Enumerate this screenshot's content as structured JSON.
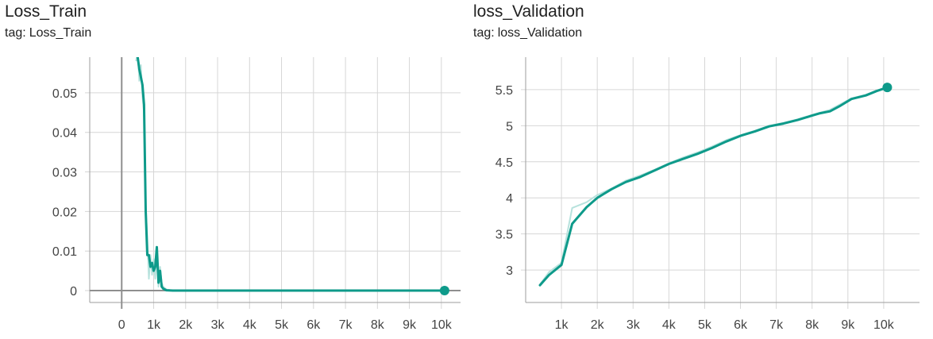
{
  "tag_prefix": "tag:",
  "colors": {
    "series": "#0e9a8a",
    "series_raw": "#b7e2dd",
    "grid": "#d6d6d6",
    "axis": "#9e9e9e",
    "zero_axis": "#8f8f8f",
    "text": "#212121"
  },
  "chart_data": [
    {
      "type": "line",
      "title": "Loss_Train",
      "tag": "Loss_Train",
      "xlabel": "",
      "ylabel": "",
      "xlim": [
        -1000,
        10600
      ],
      "ylim": [
        -0.003,
        0.059
      ],
      "xticks": [
        0,
        1000,
        2000,
        3000,
        4000,
        5000,
        6000,
        7000,
        8000,
        9000,
        10000
      ],
      "xtick_labels": [
        "0",
        "1k",
        "2k",
        "3k",
        "4k",
        "5k",
        "6k",
        "7k",
        "8k",
        "9k",
        "10k"
      ],
      "yticks": [
        0,
        0.01,
        0.02,
        0.03,
        0.04,
        0.05
      ],
      "ytick_labels": [
        "0",
        "0.01",
        "0.02",
        "0.03",
        "0.04",
        "0.05"
      ],
      "grid": true,
      "legend": "none",
      "series": [
        {
          "x": [
            450,
            500,
            550,
            600,
            650,
            700,
            750,
            800,
            850,
            900,
            950,
            1000,
            1050,
            1100,
            1150,
            1200,
            1250,
            1300,
            1400,
            1600,
            2000,
            3000,
            4000,
            5000,
            6000,
            7000,
            8000,
            9000,
            10000,
            10100
          ],
          "values": [
            0.061,
            0.059,
            0.056,
            0.054,
            0.052,
            0.047,
            0.02,
            0.009,
            0.009,
            0.006,
            0.007,
            0.005,
            0.006,
            0.011,
            0.002,
            0.005,
            0.001,
            0.0005,
            0.0001,
            0.0,
            0.0,
            0.0,
            0.0,
            0.0,
            0.0,
            0.0,
            0.0,
            0.0,
            0.0,
            0.0
          ]
        }
      ],
      "raw_series": [
        {
          "x": [
            450,
            500,
            550,
            600,
            650,
            700,
            750,
            800,
            850,
            900,
            950,
            1000,
            1050,
            1100,
            1150,
            1200,
            1250,
            1300,
            1400,
            1600,
            2000
          ],
          "values": [
            0.058,
            0.061,
            0.053,
            0.057,
            0.049,
            0.045,
            0.022,
            0.013,
            0.003,
            0.009,
            0.004,
            0.008,
            0.003,
            0.009,
            0.001,
            0.006,
            0.002,
            0.001,
            0.0003,
            0.0,
            0.0
          ]
        }
      ]
    },
    {
      "type": "line",
      "title": "loss_Validation",
      "tag": "loss_Validation",
      "xlabel": "",
      "ylabel": "",
      "xlim": [
        0,
        11000
      ],
      "ylim": [
        2.55,
        5.95
      ],
      "xticks": [
        1000,
        2000,
        3000,
        4000,
        5000,
        6000,
        7000,
        8000,
        9000,
        10000
      ],
      "xtick_labels": [
        "1k",
        "2k",
        "3k",
        "4k",
        "5k",
        "6k",
        "7k",
        "8k",
        "9k",
        "10k"
      ],
      "yticks": [
        3,
        3.5,
        4,
        4.5,
        5,
        5.5
      ],
      "ytick_labels": [
        "3",
        "3.5",
        "4",
        "4.5",
        "5",
        "5.5"
      ],
      "grid": true,
      "legend": "none",
      "series": [
        {
          "x": [
            400,
            650,
            1000,
            1300,
            1700,
            2000,
            2400,
            2800,
            3200,
            3600,
            4000,
            4400,
            4800,
            5200,
            5600,
            6000,
            6400,
            6800,
            7200,
            7600,
            8000,
            8200,
            8500,
            8800,
            9100,
            9500,
            9800,
            10100
          ],
          "values": [
            2.79,
            2.93,
            3.07,
            3.64,
            3.87,
            4.0,
            4.12,
            4.22,
            4.29,
            4.38,
            4.47,
            4.54,
            4.61,
            4.69,
            4.78,
            4.86,
            4.92,
            4.99,
            5.03,
            5.08,
            5.14,
            5.17,
            5.2,
            5.28,
            5.37,
            5.42,
            5.48,
            5.53
          ]
        }
      ],
      "raw_series": [
        {
          "x": [
            400,
            650,
            1000,
            1300,
            1700,
            2000,
            2400,
            2800,
            3200,
            3600,
            4000,
            4400,
            4800,
            5200,
            5600,
            6000,
            6400,
            6800,
            7200,
            7600,
            8000,
            8500,
            9100,
            9500,
            10100
          ],
          "values": [
            2.8,
            2.97,
            3.1,
            3.86,
            3.94,
            4.04,
            4.13,
            4.24,
            4.31,
            4.39,
            4.48,
            4.56,
            4.63,
            4.71,
            4.8,
            4.87,
            4.93,
            5.0,
            5.04,
            5.09,
            5.15,
            5.22,
            5.38,
            5.43,
            5.54
          ]
        }
      ]
    }
  ]
}
